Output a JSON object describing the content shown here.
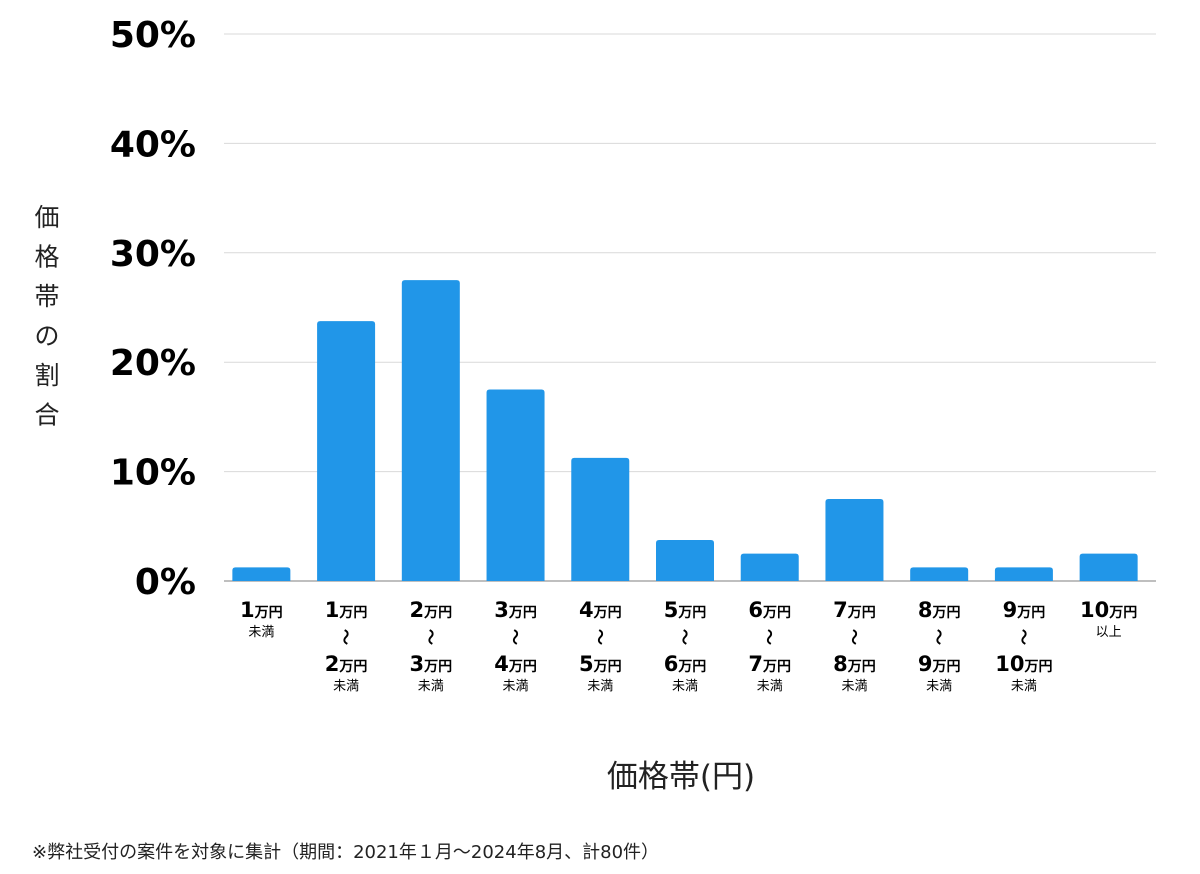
{
  "chart_data": {
    "type": "bar",
    "categories": [
      {
        "top": "1",
        "top_unit": "万円",
        "bottom": "",
        "bottom_unit": "",
        "suffix": "未満"
      },
      {
        "top": "1",
        "top_unit": "万円",
        "bottom": "2",
        "bottom_unit": "万円",
        "suffix": "未満"
      },
      {
        "top": "2",
        "top_unit": "万円",
        "bottom": "3",
        "bottom_unit": "万円",
        "suffix": "未満"
      },
      {
        "top": "3",
        "top_unit": "万円",
        "bottom": "4",
        "bottom_unit": "万円",
        "suffix": "未満"
      },
      {
        "top": "4",
        "top_unit": "万円",
        "bottom": "5",
        "bottom_unit": "万円",
        "suffix": "未満"
      },
      {
        "top": "5",
        "top_unit": "万円",
        "bottom": "6",
        "bottom_unit": "万円",
        "suffix": "未満"
      },
      {
        "top": "6",
        "top_unit": "万円",
        "bottom": "7",
        "bottom_unit": "万円",
        "suffix": "未満"
      },
      {
        "top": "7",
        "top_unit": "万円",
        "bottom": "8",
        "bottom_unit": "万円",
        "suffix": "未満"
      },
      {
        "top": "8",
        "top_unit": "万円",
        "bottom": "9",
        "bottom_unit": "万円",
        "suffix": "未満"
      },
      {
        "top": "9",
        "top_unit": "万円",
        "bottom": "10",
        "bottom_unit": "万円",
        "suffix": "未満"
      },
      {
        "top": "10",
        "top_unit": "万円",
        "bottom": "",
        "bottom_unit": "",
        "suffix": "以上"
      }
    ],
    "range_mark": "〜",
    "values": [
      1.25,
      23.75,
      27.5,
      17.5,
      11.25,
      3.75,
      2.5,
      7.5,
      1.25,
      1.25,
      2.5
    ],
    "ylim": [
      0,
      50
    ],
    "yticks": [
      0,
      10,
      20,
      30,
      40,
      50
    ],
    "ytick_labels": [
      "0%",
      "10%",
      "20%",
      "30%",
      "40%",
      "50%"
    ],
    "ylabel": "価格帯の割合",
    "xlabel": "価格帯(円)",
    "grid": true,
    "bar_color": "#2196e8",
    "grid_color": "#d9d9d9",
    "axis_color": "#aaaaaa"
  },
  "footnote": "※弊社受付の案件を対象に集計（期間：2021年１月〜2024年8月、計80件）"
}
